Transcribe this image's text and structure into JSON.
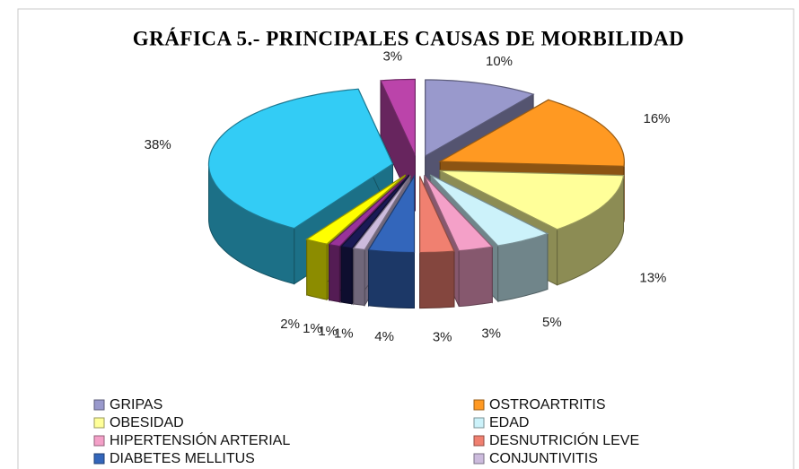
{
  "chart_data": {
    "type": "pie",
    "title": "GRÁFICA 5.- PRINCIPALES CAUSAS DE MORBILIDAD",
    "categories": [
      "GRIPAS",
      "OSTROARTRITIS",
      "OBESIDAD",
      "EDAD",
      "HIPERTENSIÓN ARTERIAL",
      "DESNUTRICIÓN LEVE",
      "DIABETES MELLITUS",
      "CONJUNTIVITIS",
      null,
      null,
      null,
      null,
      null
    ],
    "values": [
      10,
      16,
      13,
      5,
      3,
      3,
      4,
      1,
      1,
      1,
      2,
      38,
      3
    ],
    "value_labels": [
      "10%",
      "16%",
      "13%",
      "5%",
      "3%",
      "3%",
      "4%",
      "1%",
      "1%",
      "1%",
      "2%",
      "38%",
      "3%"
    ],
    "colors": [
      "#9999cc",
      "#ff9922",
      "#ffff99",
      "#ccf2fa",
      "#f4a0c8",
      "#f08070",
      "#3366bb",
      "#ccbbdd",
      "#1a1a55",
      "#993399",
      "#ffff00",
      "#33ccf5",
      "#bb44aa"
    ],
    "legend": "bottom"
  }
}
